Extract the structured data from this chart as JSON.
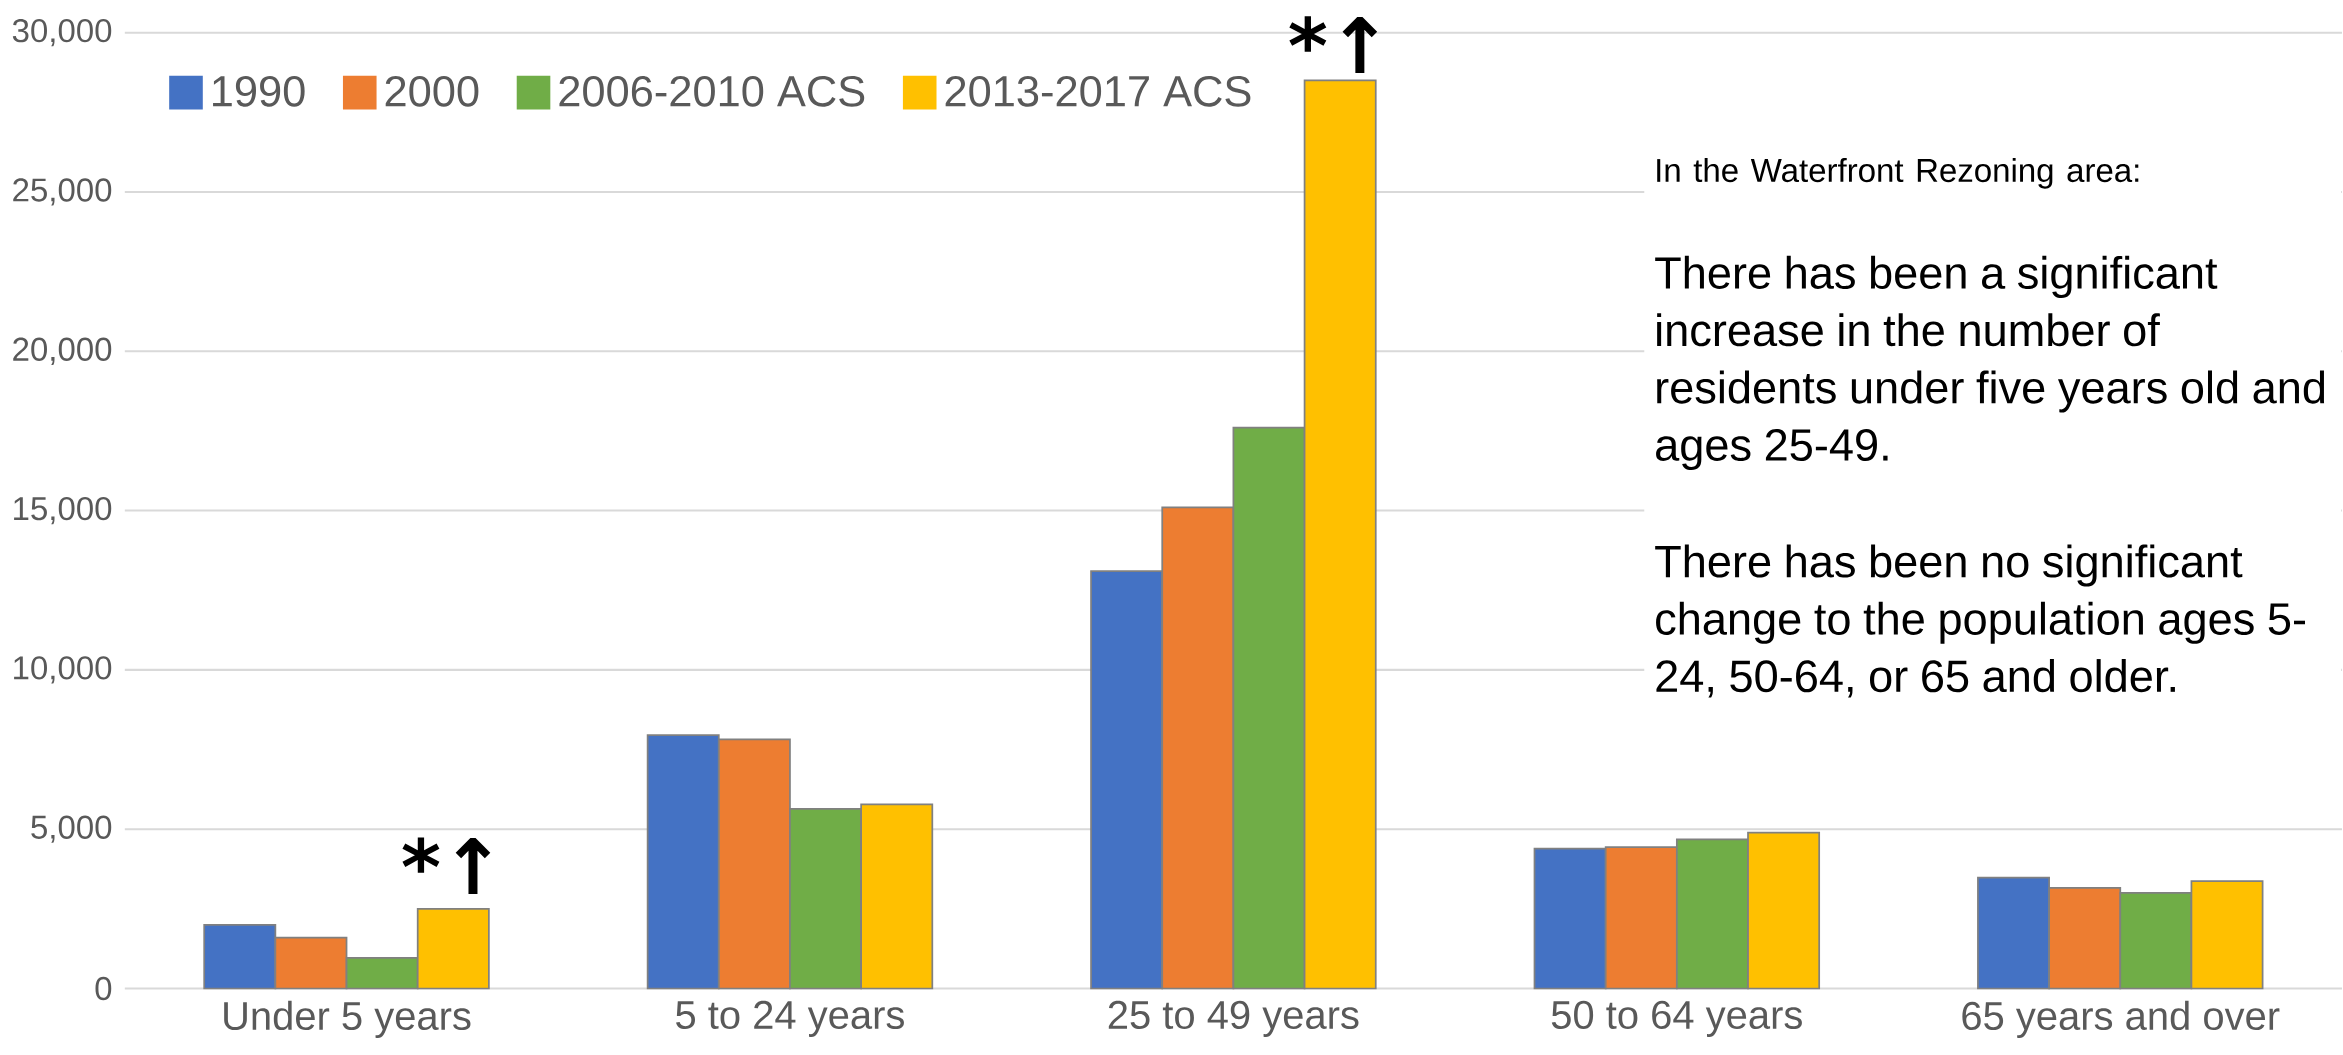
{
  "chart_data": {
    "type": "bar",
    "categories": [
      "Under 5 years",
      "5 to 24 years",
      "25 to 49 years",
      "50 to 64 years",
      "65 years and over"
    ],
    "series": [
      {
        "name": "1990",
        "color": "#4472c4",
        "values": [
          2000,
          7950,
          13100,
          4390,
          3480
        ]
      },
      {
        "name": "2000",
        "color": "#ed7d31",
        "values": [
          1600,
          7820,
          15100,
          4440,
          3160
        ]
      },
      {
        "name": "2006-2010 ACS",
        "color": "#70ad47",
        "values": [
          960,
          5640,
          17600,
          4680,
          3000
        ]
      },
      {
        "name": "2013-2017 ACS",
        "color": "#ffc000",
        "values": [
          2500,
          5780,
          28500,
          4890,
          3370
        ]
      }
    ],
    "ylim": [
      0,
      30000
    ],
    "yticks": [
      {
        "value": 0,
        "label": "0"
      },
      {
        "value": 5000,
        "label": "5,000"
      },
      {
        "value": 10000,
        "label": "10,000"
      },
      {
        "value": 15000,
        "label": "15,000"
      },
      {
        "value": 20000,
        "label": "20,000"
      },
      {
        "value": 25000,
        "label": "25,000"
      },
      {
        "value": 30000,
        "label": "30,000"
      }
    ],
    "grid": "y",
    "legend": "top left",
    "annotations": [
      "*↑",
      "*↑",
      "In the Waterfront Rezoning area:",
      "There has been a significant increase in the number of residents under five years old and ages 25-49.",
      "There has been no significant change to the population ages 5-24, 50-64, or 65 and older."
    ]
  }
}
